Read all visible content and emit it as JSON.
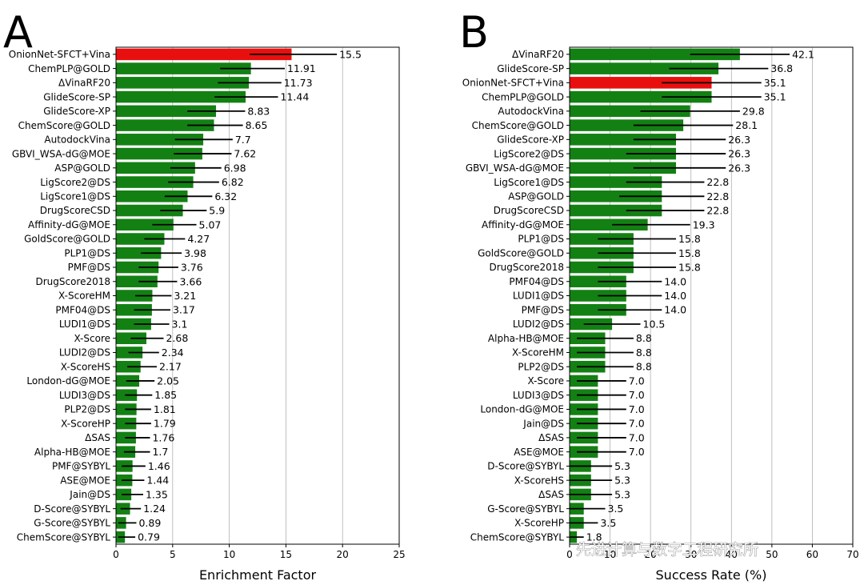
{
  "watermark": "先进计算与数字工程研究所",
  "chart_data": [
    {
      "type": "bar",
      "orientation": "horizontal",
      "panel_label": "A",
      "xlabel": "Enrichment Factor",
      "ylabel": "",
      "xlim": [
        0,
        25
      ],
      "xticks": [
        0,
        5,
        10,
        15,
        20,
        25
      ],
      "grid": true,
      "colors": {
        "default": "#138013",
        "highlight": "#e8100f"
      },
      "highlight": [
        "OnionNet-SFCT+Vina"
      ],
      "categories": [
        "OnionNet-SFCT+Vina",
        "ChemPLP@GOLD",
        "ΔVinaRF20",
        "GlideScore-SP",
        "GlideScore-XP",
        "ChemScore@GOLD",
        "AutodockVina",
        "GBVI_WSA-dG@MOE",
        "ASP@GOLD",
        "LigScore2@DS",
        "LigScore1@DS",
        "DrugScoreCSD",
        "Affinity-dG@MOE",
        "GoldScore@GOLD",
        "PLP1@DS",
        "PMF@DS",
        "DrugScore2018",
        "X-ScoreHM",
        "PMF04@DS",
        "LUDI1@DS",
        "X-Score",
        "LUDI2@DS",
        "X-ScoreHS",
        "London-dG@MOE",
        "LUDI3@DS",
        "PLP2@DS",
        "X-ScoreHP",
        "ΔSAS",
        "Alpha-HB@MOE",
        "PMF@SYBYL",
        "ASE@MOE",
        "Jain@DS",
        "D-Score@SYBYL",
        "G-Score@SYBYL",
        "ChemScore@SYBYL"
      ],
      "values": [
        15.5,
        11.91,
        11.73,
        11.44,
        8.83,
        8.65,
        7.7,
        7.62,
        6.98,
        6.82,
        6.32,
        5.9,
        5.07,
        4.27,
        3.98,
        3.76,
        3.66,
        3.21,
        3.17,
        3.1,
        2.68,
        2.34,
        2.17,
        2.05,
        1.85,
        1.81,
        1.79,
        1.76,
        1.7,
        1.46,
        1.44,
        1.35,
        1.24,
        0.89,
        0.79
      ],
      "value_labels": [
        "15.5",
        "11.91",
        "11.73",
        "11.44",
        "8.83",
        "8.65",
        "7.7",
        "7.62",
        "6.98",
        "6.82",
        "6.32",
        "5.9",
        "5.07",
        "4.27",
        "3.98",
        "3.76",
        "3.66",
        "3.21",
        "3.17",
        "3.1",
        "2.68",
        "2.34",
        "2.17",
        "2.05",
        "1.85",
        "1.81",
        "1.79",
        "1.76",
        "1.7",
        "1.46",
        "1.44",
        "1.35",
        "1.24",
        "0.89",
        "0.79"
      ],
      "error_low": [
        11.8,
        9.2,
        9.0,
        8.7,
        6.3,
        6.3,
        5.2,
        5.1,
        4.8,
        4.6,
        4.3,
        3.9,
        3.2,
        2.5,
        2.2,
        2.0,
        2.0,
        1.7,
        1.6,
        1.6,
        1.3,
        1.1,
        1.0,
        0.9,
        0.8,
        0.8,
        0.8,
        0.8,
        0.7,
        0.5,
        0.5,
        0.5,
        0.4,
        0.2,
        0.2
      ],
      "error_high": [
        19.5,
        14.9,
        14.6,
        14.3,
        11.4,
        11.2,
        10.3,
        10.2,
        9.3,
        9.1,
        8.5,
        8.0,
        7.1,
        6.1,
        5.8,
        5.5,
        5.4,
        4.9,
        4.8,
        4.7,
        4.2,
        3.8,
        3.6,
        3.4,
        3.2,
        3.1,
        3.1,
        3.0,
        3.0,
        2.6,
        2.5,
        2.4,
        2.2,
        1.8,
        1.7
      ]
    },
    {
      "type": "bar",
      "orientation": "horizontal",
      "panel_label": "B",
      "xlabel": "Success Rate (%)",
      "ylabel": "",
      "xlim": [
        0,
        70
      ],
      "xticks": [
        0,
        10,
        20,
        30,
        40,
        50,
        60,
        70
      ],
      "grid": true,
      "colors": {
        "default": "#138013",
        "highlight": "#e8100f"
      },
      "highlight": [
        "OnionNet-SFCT+Vina"
      ],
      "categories": [
        "ΔVinaRF20",
        "GlideScore-SP",
        "OnionNet-SFCT+Vina",
        "ChemPLP@GOLD",
        "AutodockVina",
        "ChemScore@GOLD",
        "GlideScore-XP",
        "LigScore2@DS",
        "GBVI_WSA-dG@MOE",
        "LigScore1@DS",
        "ASP@GOLD",
        "DrugScoreCSD",
        "Affinity-dG@MOE",
        "PLP1@DS",
        "GoldScore@GOLD",
        "DrugScore2018",
        "PMF04@DS",
        "LUDI1@DS",
        "PMF@DS",
        "LUDI2@DS",
        "Alpha-HB@MOE",
        "X-ScoreHM",
        "PLP2@DS",
        "X-Score",
        "LUDI3@DS",
        "London-dG@MOE",
        "Jain@DS",
        "ΔSAS",
        "ASE@MOE",
        "D-Score@SYBYL",
        "X-ScoreHS",
        "ΔSAS",
        "G-Score@SYBYL",
        "X-ScoreHP",
        "ChemScore@SYBYL"
      ],
      "values": [
        42.1,
        36.8,
        35.1,
        35.1,
        29.8,
        28.1,
        26.3,
        26.3,
        26.3,
        22.8,
        22.8,
        22.8,
        19.3,
        15.8,
        15.8,
        15.8,
        14.0,
        14.0,
        14.0,
        10.5,
        8.8,
        8.8,
        8.8,
        7.0,
        7.0,
        7.0,
        7.0,
        7.0,
        7.0,
        5.3,
        5.3,
        5.3,
        3.5,
        3.5,
        1.8
      ],
      "value_labels": [
        "42.1",
        "36.8",
        "35.1",
        "35.1",
        "29.8",
        "28.1",
        "26.3",
        "26.3",
        "26.3",
        "22.8",
        "22.8",
        "22.8",
        "19.3",
        "15.8",
        "15.8",
        "15.8",
        "14.0",
        "14.0",
        "14.0",
        "10.5",
        "8.8",
        "8.8",
        "8.8",
        "7.0",
        "7.0",
        "7.0",
        "7.0",
        "7.0",
        "7.0",
        "5.3",
        "5.3",
        "5.3",
        "3.5",
        "3.5",
        "1.8"
      ],
      "error_low": [
        29.8,
        24.6,
        22.8,
        22.8,
        17.5,
        15.8,
        15.8,
        14.0,
        15.8,
        14.0,
        12.3,
        14.0,
        10.5,
        7.0,
        7.0,
        7.0,
        7.0,
        7.0,
        7.0,
        3.5,
        1.8,
        1.8,
        1.8,
        1.8,
        1.8,
        1.8,
        1.8,
        1.8,
        1.8,
        0.0,
        0.0,
        0.0,
        0.0,
        0.0,
        0.0
      ],
      "error_high": [
        54.4,
        49.1,
        47.4,
        47.4,
        42.1,
        40.4,
        38.6,
        38.6,
        38.6,
        33.3,
        33.3,
        33.3,
        29.8,
        26.3,
        26.3,
        26.3,
        22.8,
        22.8,
        22.8,
        17.5,
        15.8,
        15.8,
        15.8,
        14.0,
        14.0,
        14.0,
        14.0,
        14.0,
        14.0,
        10.5,
        10.5,
        10.5,
        8.8,
        7.0,
        3.5
      ]
    }
  ]
}
